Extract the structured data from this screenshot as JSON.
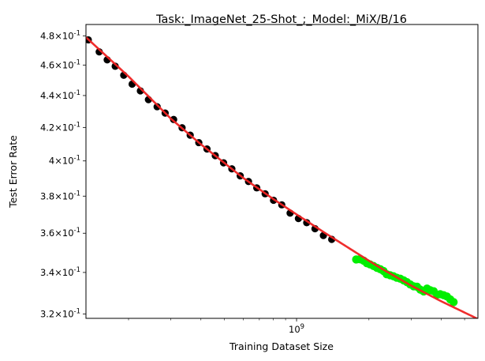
{
  "chart_data": {
    "type": "scatter",
    "title": "Task:_ImageNet_25-Shot_;_Model:_MiX/B/16",
    "xlabel": "Training Dataset Size",
    "ylabel": "Test Error Rate",
    "xscale": "log",
    "yscale": "log",
    "xlim": [
      133000000,
      5680000000
    ],
    "ylim": [
      0.318,
      0.488
    ],
    "grid": false,
    "x_ticks": [
      {
        "value": 1000000000,
        "label": "10^9"
      }
    ],
    "y_ticks": [
      {
        "value": 0.32,
        "label": "3.2×10^-1"
      },
      {
        "value": 0.34,
        "label": "3.4×10^-1"
      },
      {
        "value": 0.36,
        "label": "3.6×10^-1"
      },
      {
        "value": 0.38,
        "label": "3.8×10^-1"
      },
      {
        "value": 0.4,
        "label": "4×10^-1"
      },
      {
        "value": 0.42,
        "label": "4.2×10^-1"
      },
      {
        "value": 0.44,
        "label": "4.4×10^-1"
      },
      {
        "value": 0.46,
        "label": "4.6×10^-1"
      },
      {
        "value": 0.48,
        "label": "4.8×10^-1"
      }
    ],
    "series": [
      {
        "kind": "scatter",
        "color": "#000000",
        "points": [
          [
            136000000,
            0.4772
          ],
          [
            151000000,
            0.4689
          ],
          [
            163000000,
            0.4635
          ],
          [
            176000000,
            0.4592
          ],
          [
            191000000,
            0.4532
          ],
          [
            207000000,
            0.4474
          ],
          [
            224000000,
            0.443
          ],
          [
            242000000,
            0.4374
          ],
          [
            263000000,
            0.4329
          ],
          [
            284000000,
            0.4289
          ],
          [
            308000000,
            0.4249
          ],
          [
            334000000,
            0.4198
          ],
          [
            361000000,
            0.4153
          ],
          [
            392000000,
            0.4108
          ],
          [
            424000000,
            0.407
          ],
          [
            459000000,
            0.4031
          ],
          [
            497000000,
            0.3989
          ],
          [
            538000000,
            0.3954
          ],
          [
            583000000,
            0.3914
          ],
          [
            631000000,
            0.3882
          ],
          [
            683000000,
            0.3846
          ],
          [
            740000000,
            0.3813
          ],
          [
            802000000,
            0.3777
          ],
          [
            868000000,
            0.3752
          ],
          [
            940000000,
            0.3707
          ],
          [
            1018000000,
            0.3678
          ],
          [
            1102000000,
            0.3656
          ],
          [
            1193000000,
            0.3624
          ],
          [
            1293000000,
            0.3588
          ],
          [
            1400000000,
            0.3568
          ]
        ]
      },
      {
        "kind": "scatter",
        "color": "#00ee00",
        "points": [
          [
            1770000000,
            0.3465
          ],
          [
            1830000000,
            0.3466
          ],
          [
            1900000000,
            0.3459
          ],
          [
            1960000000,
            0.3446
          ],
          [
            2020000000,
            0.344
          ],
          [
            2090000000,
            0.3432
          ],
          [
            2160000000,
            0.3423
          ],
          [
            2230000000,
            0.3416
          ],
          [
            2300000000,
            0.3407
          ],
          [
            2370000000,
            0.3391
          ],
          [
            2450000000,
            0.3386
          ],
          [
            2530000000,
            0.3381
          ],
          [
            2610000000,
            0.3374
          ],
          [
            2700000000,
            0.3369
          ],
          [
            2790000000,
            0.3361
          ],
          [
            2880000000,
            0.3352
          ],
          [
            2970000000,
            0.3341
          ],
          [
            3070000000,
            0.3332
          ],
          [
            3170000000,
            0.333
          ],
          [
            3270000000,
            0.3316
          ],
          [
            3380000000,
            0.3307
          ],
          [
            3490000000,
            0.3321
          ],
          [
            3600000000,
            0.3313
          ],
          [
            3720000000,
            0.3308
          ],
          [
            3840000000,
            0.3292
          ],
          [
            3960000000,
            0.3294
          ],
          [
            4090000000,
            0.3289
          ],
          [
            4220000000,
            0.3283
          ],
          [
            4360000000,
            0.3269
          ],
          [
            4500000000,
            0.3256
          ]
        ]
      },
      {
        "kind": "line",
        "color": "#ee2222",
        "points": [
          [
            133000000,
            0.479
          ],
          [
            200000000,
            0.4524
          ],
          [
            300000000,
            0.4254
          ],
          [
            400000000,
            0.4098
          ],
          [
            600000000,
            0.3902
          ],
          [
            800000000,
            0.3784
          ],
          [
            1000000000,
            0.37
          ],
          [
            1300000000,
            0.3605
          ],
          [
            1700000000,
            0.3513
          ],
          [
            2200000000,
            0.3427
          ],
          [
            3000000000,
            0.3335
          ],
          [
            4000000000,
            0.326
          ],
          [
            5000000000,
            0.3207
          ],
          [
            5680000000,
            0.3177
          ]
        ]
      }
    ]
  }
}
